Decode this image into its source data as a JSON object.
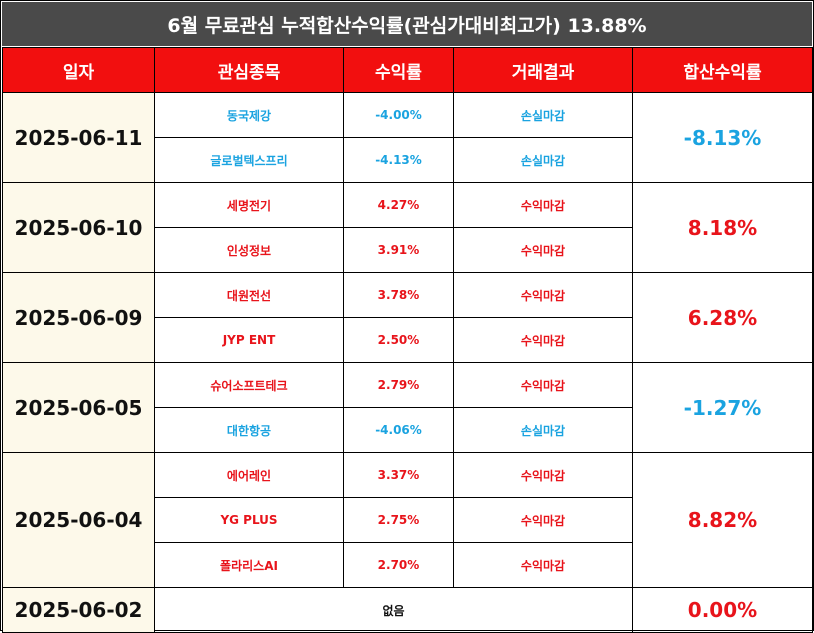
{
  "title": "6월 무료관심 누적합산수익률(관심가대비최고가) 13.88%",
  "headers": {
    "date": "일자",
    "stock": "관심종목",
    "return": "수익률",
    "result": "거래결과",
    "total": "합산수익률"
  },
  "groups": [
    {
      "date": "2025-06-11",
      "total": "-8.13%",
      "total_color": "#1aa3e0",
      "rows": [
        {
          "stock": "동국제강",
          "return": "-4.00%",
          "result": "손실마감",
          "color": "#1aa3e0"
        },
        {
          "stock": "글로벌텍스프리",
          "return": "-4.13%",
          "result": "손실마감",
          "color": "#1aa3e0"
        }
      ]
    },
    {
      "date": "2025-06-10",
      "total": "8.18%",
      "total_color": "#e8141b",
      "rows": [
        {
          "stock": "세명전기",
          "return": "4.27%",
          "result": "수익마감",
          "color": "#e8141b"
        },
        {
          "stock": "인성정보",
          "return": "3.91%",
          "result": "수익마감",
          "color": "#e8141b"
        }
      ]
    },
    {
      "date": "2025-06-09",
      "total": "6.28%",
      "total_color": "#e8141b",
      "rows": [
        {
          "stock": "대원전선",
          "return": "3.78%",
          "result": "수익마감",
          "color": "#e8141b"
        },
        {
          "stock": "JYP ENT",
          "return": "2.50%",
          "result": "수익마감",
          "color": "#e8141b"
        }
      ]
    },
    {
      "date": "2025-06-05",
      "total": "-1.27%",
      "total_color": "#1aa3e0",
      "rows": [
        {
          "stock": "슈어소프트테크",
          "return": "2.79%",
          "result": "수익마감",
          "color": "#e8141b"
        },
        {
          "stock": "대한항공",
          "return": "-4.06%",
          "result": "손실마감",
          "color": "#1aa3e0"
        }
      ]
    },
    {
      "date": "2025-06-04",
      "total": "8.82%",
      "total_color": "#e8141b",
      "rows": [
        {
          "stock": "에어레인",
          "return": "3.37%",
          "result": "수익마감",
          "color": "#e8141b"
        },
        {
          "stock": "YG PLUS",
          "return": "2.75%",
          "result": "수익마감",
          "color": "#e8141b"
        },
        {
          "stock": "폴라리스AI",
          "return": "2.70%",
          "result": "수익마감",
          "color": "#e8141b"
        }
      ]
    }
  ],
  "last": {
    "date": "2025-06-02",
    "none": "없음",
    "total": "0.00%",
    "total_color": "#e8141b"
  }
}
